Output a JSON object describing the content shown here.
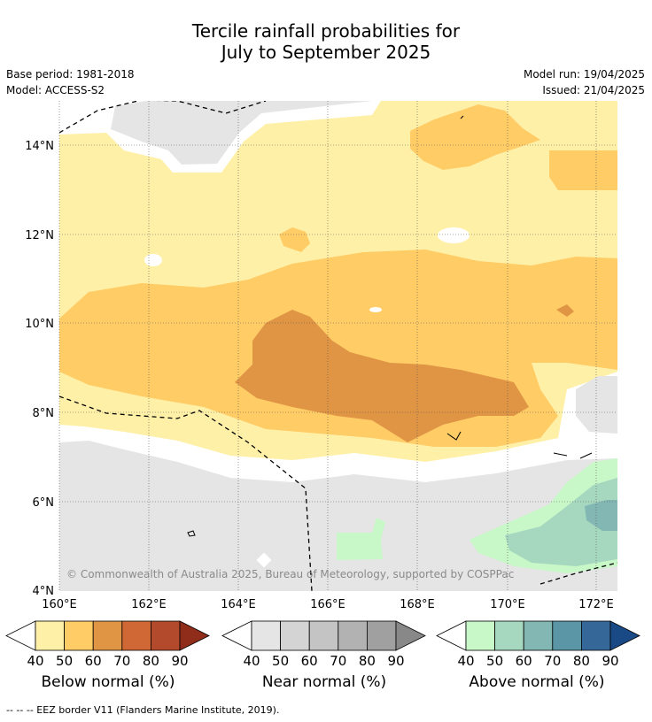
{
  "title_line1": "Tercile rainfall probabilities for",
  "title_line2": "July to September 2025",
  "base_period": "Base period: 1981-2018",
  "model": "Model: ACCESS-S2",
  "model_run": "Model run: 19/04/2025",
  "issued": "Issued: 21/04/2025",
  "copyright": "© Commonwealth of Australia 2025, Bureau of Meteorology, supported by COSPPac",
  "lat_labels": [
    "14°N",
    "12°N",
    "10°N",
    "8°N",
    "6°N",
    "4°N"
  ],
  "lon_labels": [
    "160°E",
    "162°E",
    "164°E",
    "166°E",
    "168°E",
    "170°E",
    "172°E"
  ],
  "colorbars": [
    {
      "label": "Below normal (%)",
      "ticks": [
        "40",
        "50",
        "60",
        "70",
        "80",
        "90"
      ],
      "colors": [
        "#fff0a8",
        "#ffcc66",
        "#e09545",
        "#d06836",
        "#b34a2b",
        "#8f2c1a"
      ]
    },
    {
      "label": "Near normal (%)",
      "ticks": [
        "40",
        "50",
        "60",
        "70",
        "80",
        "90"
      ],
      "colors": [
        "#e5e5e5",
        "#d4d4d4",
        "#c4c4c4",
        "#b2b2b2",
        "#a0a0a0",
        "#888888"
      ]
    },
    {
      "label": "Above normal (%)",
      "ticks": [
        "40",
        "50",
        "60",
        "70",
        "80",
        "90"
      ],
      "colors": [
        "#c8f7c8",
        "#a6d8c0",
        "#82b7b3",
        "#5a96a6",
        "#356899",
        "#1a4a86"
      ]
    }
  ],
  "footer": "--  --  -- EEZ border V11 (Flanders Marine Institute, 2019).",
  "colors": {
    "below_40": "#fff0a8",
    "below_50": "#ffcc66",
    "below_60": "#e09545",
    "near_40": "#e5e5e5",
    "above_40": "#c8f7c8",
    "above_50": "#a6d8c0",
    "above_60": "#82b7b3"
  }
}
